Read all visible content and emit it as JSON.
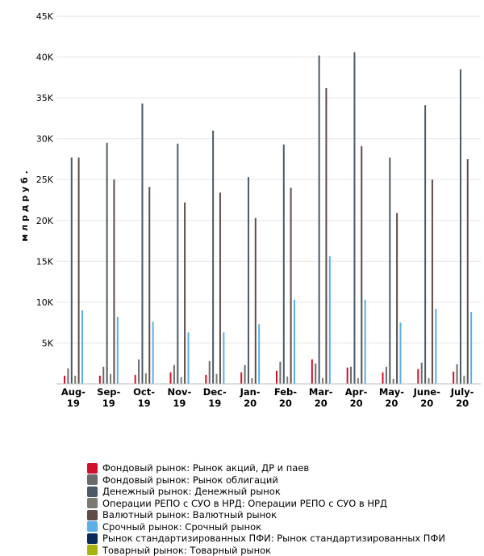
{
  "chart_data": {
    "type": "bar",
    "ylabel": "м л р д   р у б .",
    "ylim": [
      0,
      45000
    ],
    "yticks": [
      {
        "value": 5000,
        "label": "5K"
      },
      {
        "value": 10000,
        "label": "10K"
      },
      {
        "value": 15000,
        "label": "15K"
      },
      {
        "value": 20000,
        "label": "20K"
      },
      {
        "value": 25000,
        "label": "25K"
      },
      {
        "value": 30000,
        "label": "30K"
      },
      {
        "value": 35000,
        "label": "35K"
      },
      {
        "value": 40000,
        "label": "40K"
      },
      {
        "value": 45000,
        "label": "45K"
      }
    ],
    "categories": [
      [
        "Aug-",
        "19"
      ],
      [
        "Sep-",
        "19"
      ],
      [
        "Oct-",
        "19"
      ],
      [
        "Nov-",
        "19"
      ],
      [
        "Dec-",
        "19"
      ],
      [
        "Jan-",
        "20"
      ],
      [
        "Feb-",
        "20"
      ],
      [
        "Mar-",
        "20"
      ],
      [
        "Apr-",
        "20"
      ],
      [
        "May-",
        "20"
      ],
      [
        "June-",
        "20"
      ],
      [
        "July-",
        "20"
      ]
    ],
    "grid": true,
    "legend_position": "bottom",
    "series": [
      {
        "name": "Фондовый рынок: Рынок акций, ДР и паев",
        "color": "#d0112b",
        "values": [
          1000,
          1000,
          1100,
          1400,
          1100,
          1400,
          1600,
          3000,
          2000,
          1400,
          1800,
          1500
        ]
      },
      {
        "name": "Фондовый рынок: Рынок облигаций",
        "color": "#6b6b6b",
        "values": [
          1900,
          2100,
          3000,
          2300,
          2800,
          2300,
          2700,
          2500,
          2100,
          2100,
          2600,
          2400
        ]
      },
      {
        "name": "Денежный рынок: Денежный рынок",
        "color": "#4b5a66",
        "values": [
          27700,
          29500,
          34300,
          29400,
          31000,
          25300,
          29300,
          40200,
          40600,
          27700,
          34100,
          38500
        ]
      },
      {
        "name": "Операции РЕПО с СУО в НРД: Операции РЕПО с СУО в НРД",
        "color": "#7c7a70",
        "values": [
          1000,
          1200,
          1300,
          800,
          1200,
          700,
          900,
          700,
          700,
          600,
          700,
          1000
        ]
      },
      {
        "name": "Валютный рынок: Валютный рынок",
        "color": "#5e4c48",
        "values": [
          27700,
          25000,
          24100,
          22200,
          23400,
          20300,
          24000,
          36200,
          29100,
          20900,
          25000,
          27500
        ]
      },
      {
        "name": "Срочный рынок: Срочный рынок",
        "color": "#5aafe6",
        "values": [
          9000,
          8200,
          7600,
          6300,
          6300,
          7300,
          10300,
          15600,
          10300,
          7500,
          9200,
          8800
        ]
      },
      {
        "name": "Рынок стандартизированных ПФИ: Рынок стандартизированных ПФИ",
        "color": "#0b2a5c",
        "values": [
          0,
          0,
          0,
          0,
          0,
          0,
          0,
          0,
          0,
          0,
          0,
          0
        ]
      },
      {
        "name": "Товарный рынок: Товарный рынок",
        "color": "#aab30d",
        "values": [
          0,
          0,
          0,
          0,
          0,
          0,
          0,
          0,
          0,
          0,
          0,
          0
        ]
      }
    ]
  }
}
